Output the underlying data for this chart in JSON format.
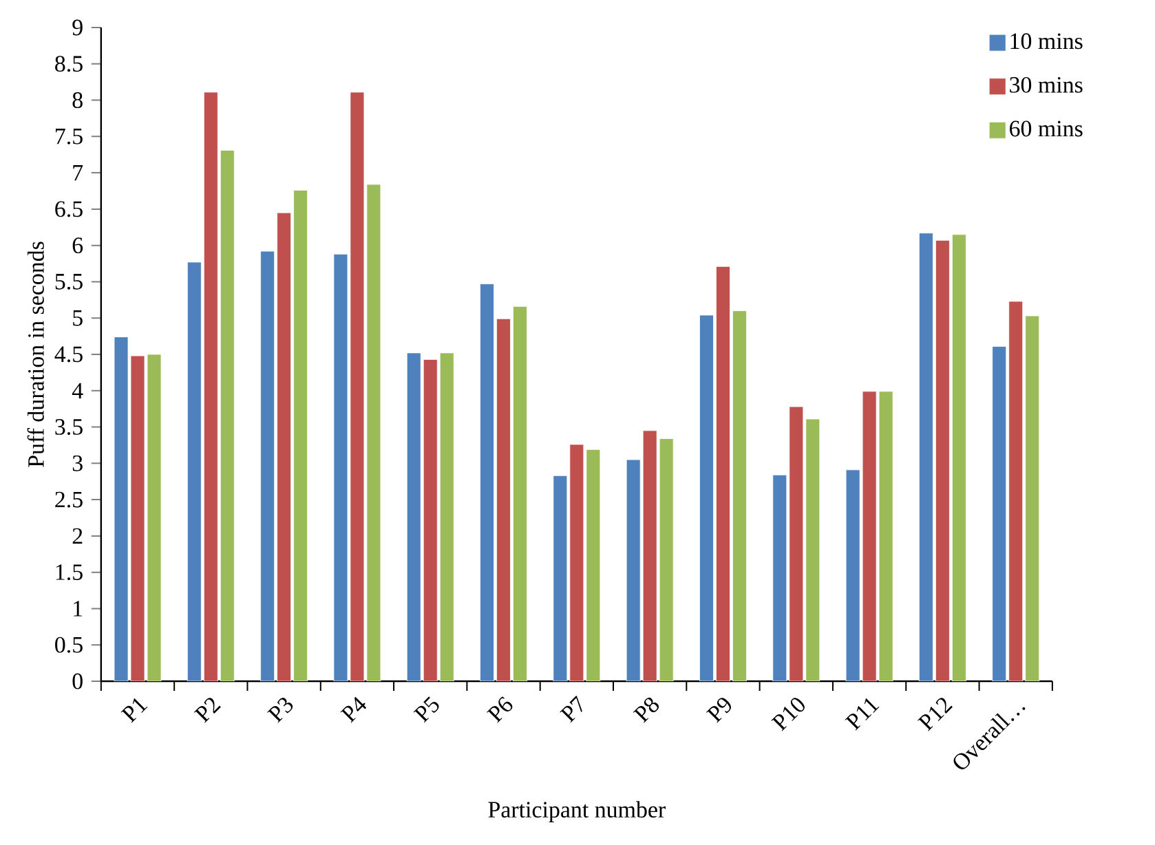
{
  "chart_data": {
    "type": "bar",
    "xlabel": "Participant number",
    "ylabel": "Puff duration in seconds",
    "categories": [
      "P1",
      "P2",
      "P3",
      "P4",
      "P5",
      "P6",
      "P7",
      "P8",
      "P9",
      "P10",
      "P11",
      "P12",
      "Overall…"
    ],
    "series": [
      {
        "name": "10 mins",
        "color": "#4f81bd",
        "values": [
          4.74,
          5.77,
          5.92,
          5.88,
          4.52,
          5.47,
          2.83,
          3.05,
          5.04,
          2.84,
          2.91,
          6.17,
          4.61
        ]
      },
      {
        "name": "30 mins",
        "color": "#c0504d",
        "values": [
          4.48,
          8.11,
          6.45,
          8.11,
          4.43,
          4.99,
          3.26,
          3.45,
          5.71,
          3.78,
          3.99,
          6.07,
          5.23
        ]
      },
      {
        "name": "60 mins",
        "color": "#9bbb59",
        "values": [
          4.5,
          7.31,
          6.76,
          6.84,
          4.52,
          5.16,
          3.19,
          3.34,
          5.1,
          3.61,
          3.99,
          6.15,
          5.03
        ]
      }
    ],
    "ylim": [
      0,
      9
    ],
    "yticks": [
      0,
      0.5,
      1,
      1.5,
      2,
      2.5,
      3,
      3.5,
      4,
      4.5,
      5,
      5.5,
      6,
      6.5,
      7,
      7.5,
      8,
      8.5,
      9
    ],
    "legend": "top right",
    "grid": false
  }
}
